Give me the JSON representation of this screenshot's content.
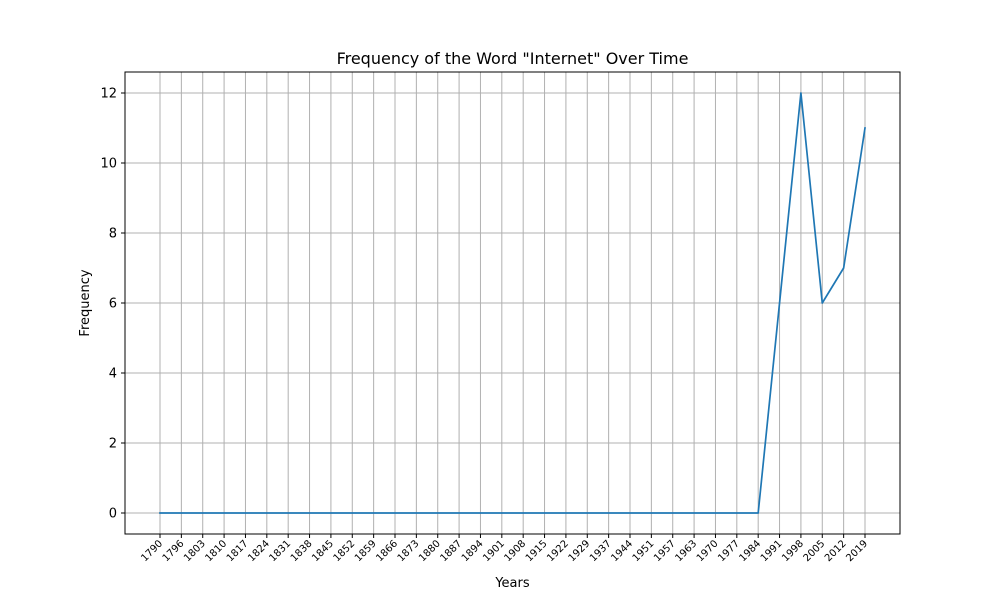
{
  "chart_data": {
    "type": "line",
    "title": "Frequency of the Word \"Internet\" Over Time",
    "xlabel": "Years",
    "ylabel": "Frequency",
    "categories": [
      "1790",
      "1796",
      "1803",
      "1810",
      "1817",
      "1824",
      "1831",
      "1838",
      "1845",
      "1852",
      "1859",
      "1866",
      "1873",
      "1880",
      "1887",
      "1894",
      "1901",
      "1908",
      "1915",
      "1922",
      "1929",
      "1937",
      "1944",
      "1951",
      "1957",
      "1963",
      "1970",
      "1977",
      "1984",
      "1991",
      "1998",
      "2005",
      "2012",
      "2019"
    ],
    "series": [
      {
        "name": "",
        "color": "#1f77b4",
        "values": [
          0,
          0,
          0,
          0,
          0,
          0,
          0,
          0,
          0,
          0,
          0,
          0,
          0,
          0,
          0,
          0,
          0,
          0,
          0,
          0,
          0,
          0,
          0,
          0,
          0,
          0,
          0,
          0,
          0,
          6,
          12,
          6,
          7,
          11
        ]
      }
    ],
    "yticks": [
      0,
      2,
      4,
      6,
      8,
      10,
      12
    ],
    "ylim": [
      -0.6,
      12.6
    ],
    "grid": true,
    "x_tick_rotation_deg": 45
  }
}
